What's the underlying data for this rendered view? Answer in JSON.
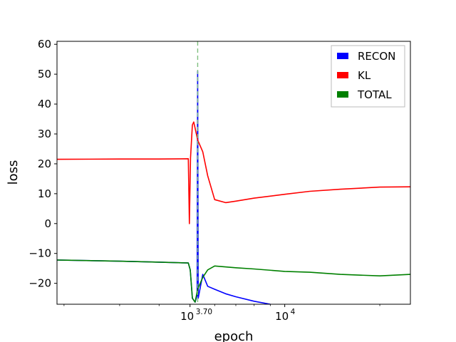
{
  "chart_data": {
    "type": "line",
    "title": "",
    "xlabel": "epoch",
    "ylabel": "loss",
    "x_scale": "log",
    "xlim": [
      1900,
      25000
    ],
    "ylim": [
      -27,
      61
    ],
    "grid": false,
    "legend_position": "top-right",
    "x_ticks": [
      {
        "value": 5012,
        "label": "10",
        "sup": "3.70"
      },
      {
        "value": 10000,
        "label": "10",
        "sup": "4"
      }
    ],
    "y_ticks": [
      -20,
      -10,
      0,
      10,
      20,
      30,
      40,
      50,
      60
    ],
    "vline": {
      "x": 5300,
      "color": "#7fbf7f"
    },
    "series": [
      {
        "name": "RECON",
        "color": "#0000ff",
        "points": [
          [
            1900,
            -12.2
          ],
          [
            3000,
            -12.6
          ],
          [
            4000,
            -12.9
          ],
          [
            4950,
            -13.2
          ],
          [
            5020,
            -15.5
          ],
          [
            5100,
            -25
          ],
          [
            5200,
            -26.3
          ],
          [
            5280,
            -24
          ],
          [
            5300,
            51
          ],
          [
            5320,
            -25
          ],
          [
            5500,
            -17
          ],
          [
            5700,
            -21
          ],
          [
            6000,
            -22
          ],
          [
            6500,
            -23.5
          ],
          [
            7000,
            -24.5
          ],
          [
            8000,
            -26
          ],
          [
            9000,
            -27
          ]
        ]
      },
      {
        "name": "KL",
        "color": "#ff0000",
        "points": [
          [
            1900,
            21.5
          ],
          [
            3000,
            21.6
          ],
          [
            4000,
            21.6
          ],
          [
            4950,
            21.7
          ],
          [
            4990,
            0
          ],
          [
            5030,
            22
          ],
          [
            5100,
            33
          ],
          [
            5150,
            34
          ],
          [
            5250,
            30
          ],
          [
            5300,
            28
          ],
          [
            5500,
            24
          ],
          [
            5700,
            16
          ],
          [
            6000,
            8
          ],
          [
            6500,
            7
          ],
          [
            7000,
            7.5
          ],
          [
            8000,
            8.5
          ],
          [
            10000,
            9.8
          ],
          [
            12000,
            10.8
          ],
          [
            15000,
            11.5
          ],
          [
            20000,
            12.2
          ],
          [
            25000,
            12.3
          ]
        ]
      },
      {
        "name": "TOTAL",
        "color": "#008000",
        "points": [
          [
            1900,
            -12.2
          ],
          [
            3000,
            -12.6
          ],
          [
            4000,
            -12.9
          ],
          [
            4950,
            -13.2
          ],
          [
            5020,
            -15.5
          ],
          [
            5100,
            -25
          ],
          [
            5200,
            -26.3
          ],
          [
            5300,
            -22
          ],
          [
            5500,
            -18
          ],
          [
            5700,
            -15.5
          ],
          [
            6000,
            -14.2
          ],
          [
            7000,
            -14.8
          ],
          [
            8000,
            -15.2
          ],
          [
            10000,
            -16
          ],
          [
            12000,
            -16.3
          ],
          [
            15000,
            -17
          ],
          [
            20000,
            -17.5
          ],
          [
            25000,
            -17
          ]
        ]
      }
    ]
  }
}
